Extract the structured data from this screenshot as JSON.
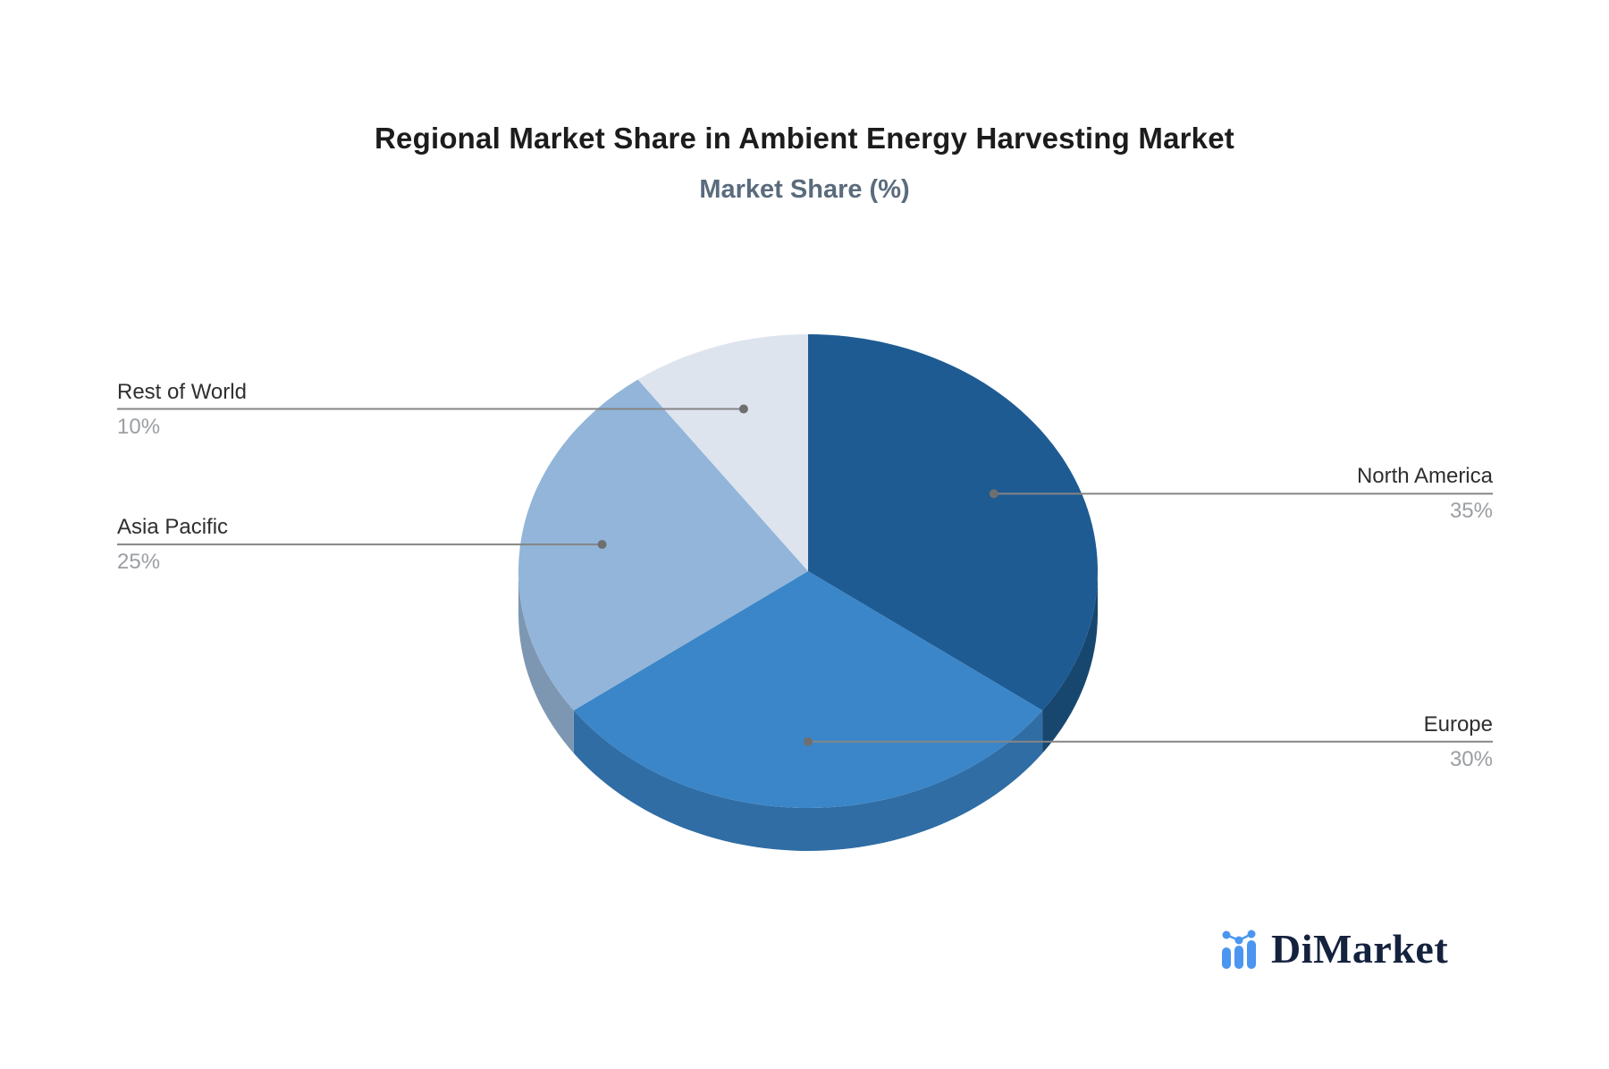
{
  "chart_data": {
    "type": "pie",
    "title": "Regional Market Share in Ambient Energy Harvesting Market",
    "subtitle": "Market Share (%)",
    "unit": "%",
    "start_angle_deg": 90,
    "direction": "clockwise",
    "effect": "3d",
    "legend_position": "callout-labels",
    "slices": [
      {
        "label": "North America",
        "value": 35,
        "pct": "35%",
        "color": "#1e5b93",
        "side_color": "#17476f",
        "label_side": "right"
      },
      {
        "label": "Europe",
        "value": 30,
        "pct": "30%",
        "color": "#3a86c8",
        "side_color": "#2f6da4",
        "label_side": "right"
      },
      {
        "label": "Asia Pacific",
        "value": 25,
        "pct": "25%",
        "color": "#92b5d9",
        "side_color": "#7d97b2",
        "label_side": "left"
      },
      {
        "label": "Rest of World",
        "value": 10,
        "pct": "10%",
        "color": "#dde4ee",
        "side_color": "#c9d0da",
        "label_side": "left"
      }
    ]
  },
  "branding": {
    "name": "DiMarket",
    "text_color": "#15223e",
    "icon_color": "#4a96f0"
  },
  "colors": {
    "background": "#ffffff",
    "title": "#1c1c1c",
    "subtitle": "#5a6b7d",
    "label_text": "#2f2f2f",
    "percent_text": "#9b9ea3",
    "label_line": "#858585",
    "label_dot": "#6f6f6f"
  }
}
